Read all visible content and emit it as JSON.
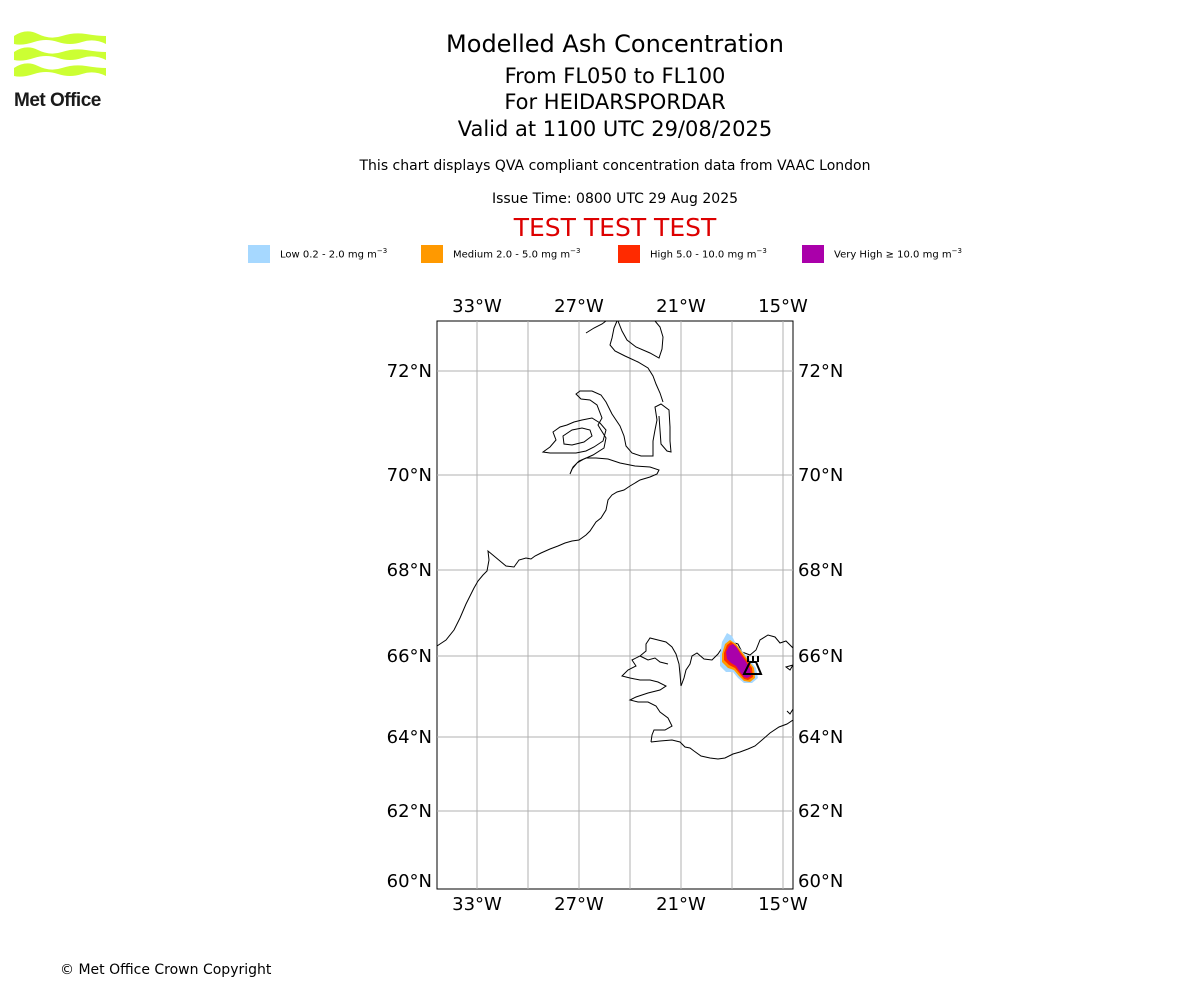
{
  "header": {
    "title": "Modelled Ash Concentration",
    "subtitle_levels": "From FL050 to FL100",
    "subtitle_volcano": "For HEIDARSPORDAR",
    "subtitle_valid": "Valid at 1100 UTC 29/08/2025",
    "note": "This chart displays QVA compliant concentration data from VAAC London",
    "issue_time": "Issue Time: 0800 UTC 29 Aug 2025",
    "test_banner": "TEST TEST TEST",
    "test_color": "#dd0000"
  },
  "logo": {
    "text": "Met Office",
    "icon": "met-office-wave-logo",
    "color": "#ccff33"
  },
  "legend": [
    {
      "label": "Low 0.2 - 2.0 mg m",
      "unit_exp": "−3",
      "color": "#a6d8ff"
    },
    {
      "label": "Medium 2.0 - 5.0 mg m",
      "unit_exp": "−3",
      "color": "#ff9900"
    },
    {
      "label": "High 5.0 - 10.0 mg m",
      "unit_exp": "−3",
      "color": "#ff2a00"
    },
    {
      "label": "Very High  ≥  10.0 mg m",
      "unit_exp": "−3",
      "color": "#aa00aa"
    }
  ],
  "map": {
    "lon_labels": [
      "33°W",
      "27°W",
      "21°W",
      "15°W"
    ],
    "lat_labels": [
      "72°N",
      "70°N",
      "68°N",
      "66°N",
      "64°N",
      "62°N",
      "60°N"
    ],
    "lon_range": [
      -35.5,
      -14.5
    ],
    "lat_range": [
      59.8,
      73.0
    ],
    "grid": true,
    "volcano_marker": "volcano-symbol"
  },
  "footer": {
    "copyright": "© Met Office Crown Copyright"
  }
}
